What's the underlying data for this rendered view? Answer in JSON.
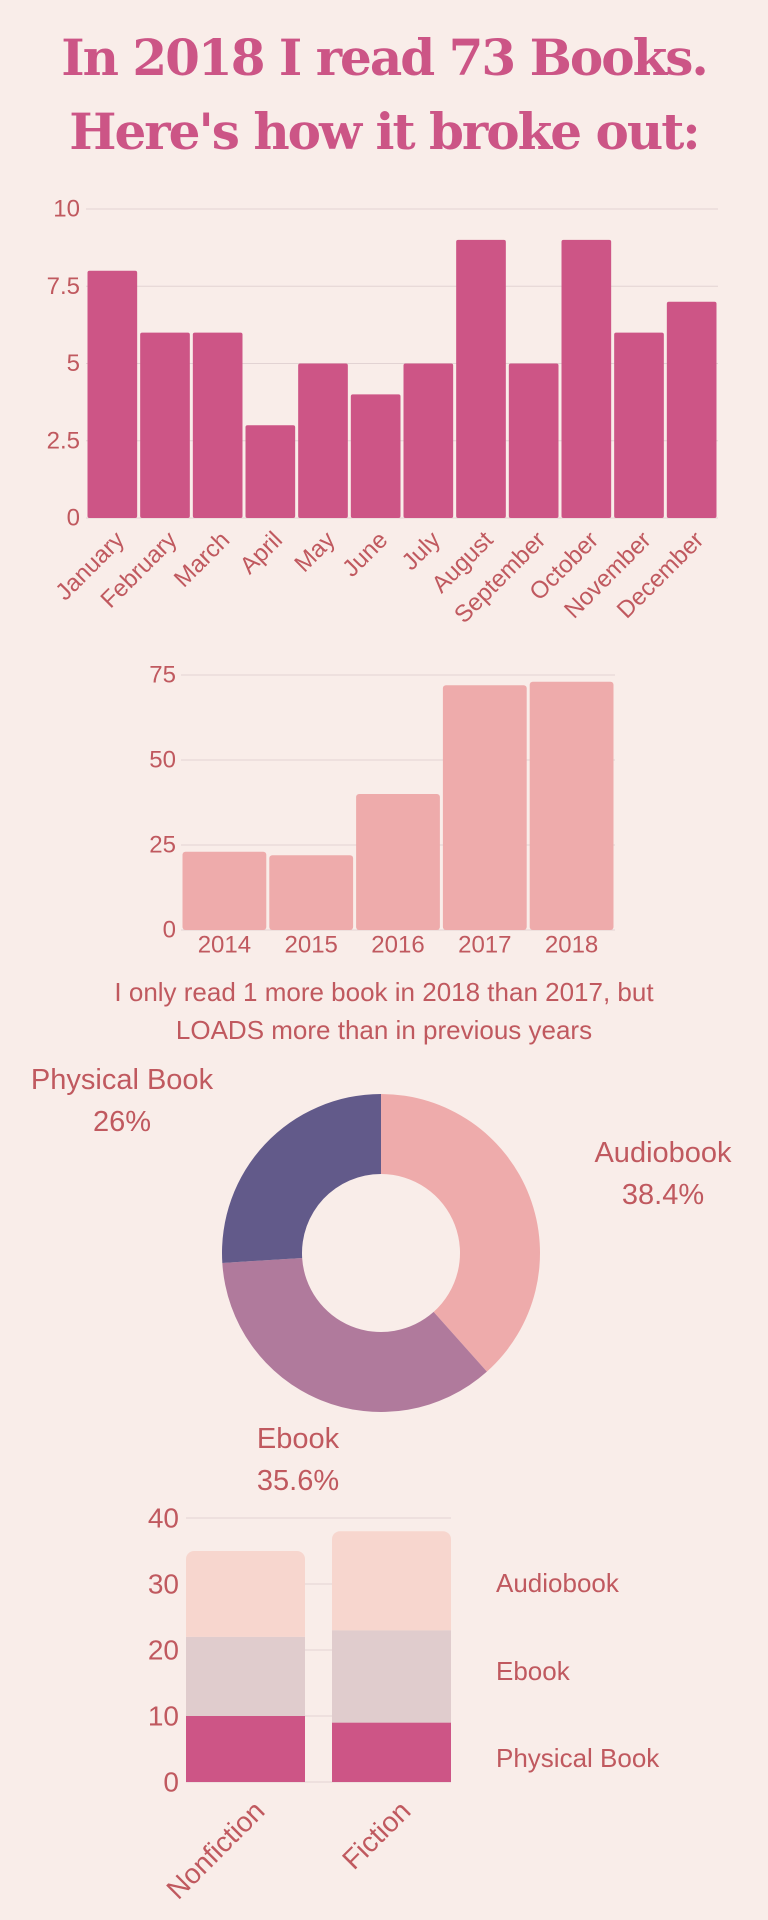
{
  "header": {
    "line1": "In 2018 I read 73 Books.",
    "line2": "Here's how it broke out:"
  },
  "caption": {
    "line1": "I only read 1 more book in 2018 than 2017, but",
    "line2": "LOADS more than in previous years"
  },
  "colors": {
    "background": "#f9ede9",
    "text": "#c0595f",
    "title": "#cc5586",
    "monthly_bar": "#cd5586",
    "yearly_bar": "#eeabab",
    "audiobook": "#eeabab",
    "ebook": "#b07a9c",
    "physical": "#625a8a",
    "stack_audiobook": "#f7d6ce",
    "stack_ebook": "#e0cccd",
    "stack_physical": "#cd5586"
  },
  "chart_data": [
    {
      "type": "bar",
      "categories": [
        "January",
        "February",
        "March",
        "April",
        "May",
        "June",
        "July",
        "August",
        "September",
        "October",
        "November",
        "December"
      ],
      "values": [
        8,
        6,
        6,
        3,
        5,
        4,
        5,
        9,
        5,
        9,
        6,
        7
      ],
      "ylim": [
        0,
        10
      ],
      "yticks": [
        "0",
        "2.5",
        "5",
        "7.5",
        "10"
      ],
      "grid": true
    },
    {
      "type": "bar",
      "categories": [
        "2014",
        "2015",
        "2016",
        "2017",
        "2018"
      ],
      "values": [
        23,
        22,
        40,
        72,
        73
      ],
      "ylim": [
        0,
        75
      ],
      "yticks": [
        "0",
        "25",
        "50",
        "75"
      ],
      "grid": true
    },
    {
      "type": "pie",
      "donut": true,
      "slices": [
        {
          "label": "Audiobook",
          "value": 38.4,
          "text": "38.4%"
        },
        {
          "label": "Ebook",
          "value": 35.6,
          "text": "35.6%"
        },
        {
          "label": "Physical Book",
          "value": 26,
          "text": "26%"
        }
      ]
    },
    {
      "type": "bar",
      "stacked": true,
      "categories": [
        "Nonfiction",
        "Fiction"
      ],
      "series": [
        {
          "name": "Physical Book",
          "values": [
            10,
            9
          ]
        },
        {
          "name": "Ebook",
          "values": [
            12,
            14
          ]
        },
        {
          "name": "Audiobook",
          "values": [
            13,
            15
          ]
        }
      ],
      "ylim": [
        0,
        40
      ],
      "yticks": [
        "0",
        "10",
        "20",
        "30",
        "40"
      ],
      "grid": true,
      "legend": "right"
    }
  ]
}
